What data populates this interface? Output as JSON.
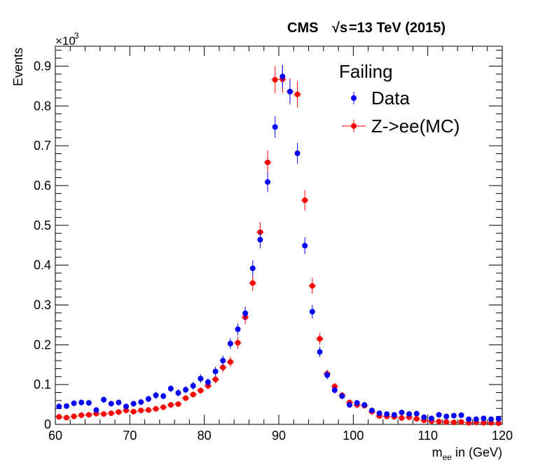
{
  "header": {
    "experiment": "CMS",
    "sqrt": "√s",
    "energy": "=13 TeV (2015)"
  },
  "axis_multiplier": {
    "prefix": "×10",
    "exponent": "3"
  },
  "colors": {
    "data": "#0000ff",
    "mc": "#ff0000",
    "axis": "#000000"
  },
  "chart_data": {
    "type": "scatter",
    "title": "",
    "xlabel_main": "m",
    "xlabel_sub": "ee",
    "xlabel_rest": " in (GeV)",
    "ylabel": "Events",
    "xlim": [
      60,
      120
    ],
    "ylim": [
      0,
      0.95
    ],
    "y_scale_note": "values in units of 10^3 events",
    "x_ticks": [
      60,
      70,
      80,
      90,
      100,
      110,
      120
    ],
    "x_tick_labels": [
      "60",
      "70",
      "80",
      "90",
      "100",
      "110",
      "120"
    ],
    "y_ticks": [
      0,
      0.1,
      0.2,
      0.3,
      0.4,
      0.5,
      0.6,
      0.7,
      0.8,
      0.9
    ],
    "y_tick_labels": [
      "0",
      "0.1",
      "0.2",
      "0.3",
      "0.4",
      "0.5",
      "0.6",
      "0.7",
      "0.8",
      "0.9"
    ],
    "legend_title": "Failing",
    "legend_position": "top-right",
    "grid": false,
    "x": [
      60.5,
      61.5,
      62.5,
      63.5,
      64.5,
      65.5,
      66.5,
      67.5,
      68.5,
      69.5,
      70.5,
      71.5,
      72.5,
      73.5,
      74.5,
      75.5,
      76.5,
      77.5,
      78.5,
      79.5,
      80.5,
      81.5,
      82.5,
      83.5,
      84.5,
      85.5,
      86.5,
      87.5,
      88.5,
      89.5,
      90.5,
      91.5,
      92.5,
      93.5,
      94.5,
      95.5,
      96.5,
      97.5,
      98.5,
      99.5,
      100.5,
      101.5,
      102.5,
      103.5,
      104.5,
      105.5,
      106.5,
      107.5,
      108.5,
      109.5,
      110.5,
      111.5,
      112.5,
      113.5,
      114.5,
      115.5,
      116.5,
      117.5,
      118.5,
      119.5
    ],
    "series": [
      {
        "name": "Data",
        "color": "#0000ff",
        "values": [
          0.045,
          0.046,
          0.053,
          0.055,
          0.054,
          0.036,
          0.062,
          0.052,
          0.055,
          0.045,
          0.052,
          0.056,
          0.064,
          0.073,
          0.071,
          0.09,
          0.079,
          0.087,
          0.097,
          0.115,
          0.106,
          0.133,
          0.16,
          0.203,
          0.239,
          0.279,
          0.392,
          0.464,
          0.609,
          0.747,
          0.874,
          0.836,
          0.681,
          0.449,
          0.283,
          0.182,
          0.124,
          0.086,
          0.071,
          0.049,
          0.054,
          0.049,
          0.035,
          0.028,
          0.026,
          0.024,
          0.03,
          0.026,
          0.027,
          0.018,
          0.015,
          0.024,
          0.02,
          0.022,
          0.023,
          0.013,
          0.013,
          0.015,
          0.013,
          0.014
        ],
        "errors": [
          0.007,
          0.007,
          0.007,
          0.007,
          0.007,
          0.006,
          0.008,
          0.007,
          0.007,
          0.007,
          0.007,
          0.007,
          0.008,
          0.009,
          0.008,
          0.009,
          0.009,
          0.009,
          0.01,
          0.011,
          0.01,
          0.012,
          0.013,
          0.014,
          0.015,
          0.017,
          0.02,
          0.022,
          0.025,
          0.027,
          0.03,
          0.029,
          0.026,
          0.021,
          0.017,
          0.013,
          0.011,
          0.009,
          0.008,
          0.007,
          0.007,
          0.007,
          0.006,
          0.005,
          0.005,
          0.005,
          0.005,
          0.005,
          0.005,
          0.004,
          0.004,
          0.005,
          0.004,
          0.005,
          0.005,
          0.004,
          0.004,
          0.004,
          0.004,
          0.004
        ]
      },
      {
        "name": "Z->ee(MC)",
        "color": "#ff0000",
        "values": [
          0.019,
          0.017,
          0.02,
          0.023,
          0.024,
          0.027,
          0.026,
          0.028,
          0.031,
          0.035,
          0.032,
          0.035,
          0.036,
          0.039,
          0.043,
          0.049,
          0.051,
          0.066,
          0.075,
          0.085,
          0.097,
          0.113,
          0.143,
          0.157,
          0.205,
          0.269,
          0.355,
          0.483,
          0.658,
          0.866,
          0.867,
          0.836,
          0.829,
          0.563,
          0.348,
          0.215,
          0.127,
          0.095,
          0.073,
          0.055,
          0.049,
          0.047,
          0.032,
          0.021,
          0.02,
          0.019,
          0.016,
          0.018,
          0.014,
          0.01,
          0.008,
          0.007,
          0.006,
          0.005,
          0.006,
          0.004,
          0.005,
          0.004,
          0.004,
          0.003
        ],
        "errors": [
          0.004,
          0.004,
          0.004,
          0.004,
          0.004,
          0.004,
          0.004,
          0.004,
          0.005,
          0.005,
          0.005,
          0.005,
          0.005,
          0.005,
          0.005,
          0.006,
          0.006,
          0.007,
          0.007,
          0.008,
          0.009,
          0.01,
          0.012,
          0.013,
          0.015,
          0.017,
          0.02,
          0.025,
          0.03,
          0.034,
          0.034,
          0.033,
          0.033,
          0.026,
          0.02,
          0.015,
          0.011,
          0.009,
          0.008,
          0.007,
          0.006,
          0.006,
          0.005,
          0.004,
          0.004,
          0.004,
          0.004,
          0.004,
          0.003,
          0.003,
          0.003,
          0.003,
          0.002,
          0.002,
          0.002,
          0.002,
          0.002,
          0.002,
          0.002,
          0.002
        ]
      }
    ]
  }
}
